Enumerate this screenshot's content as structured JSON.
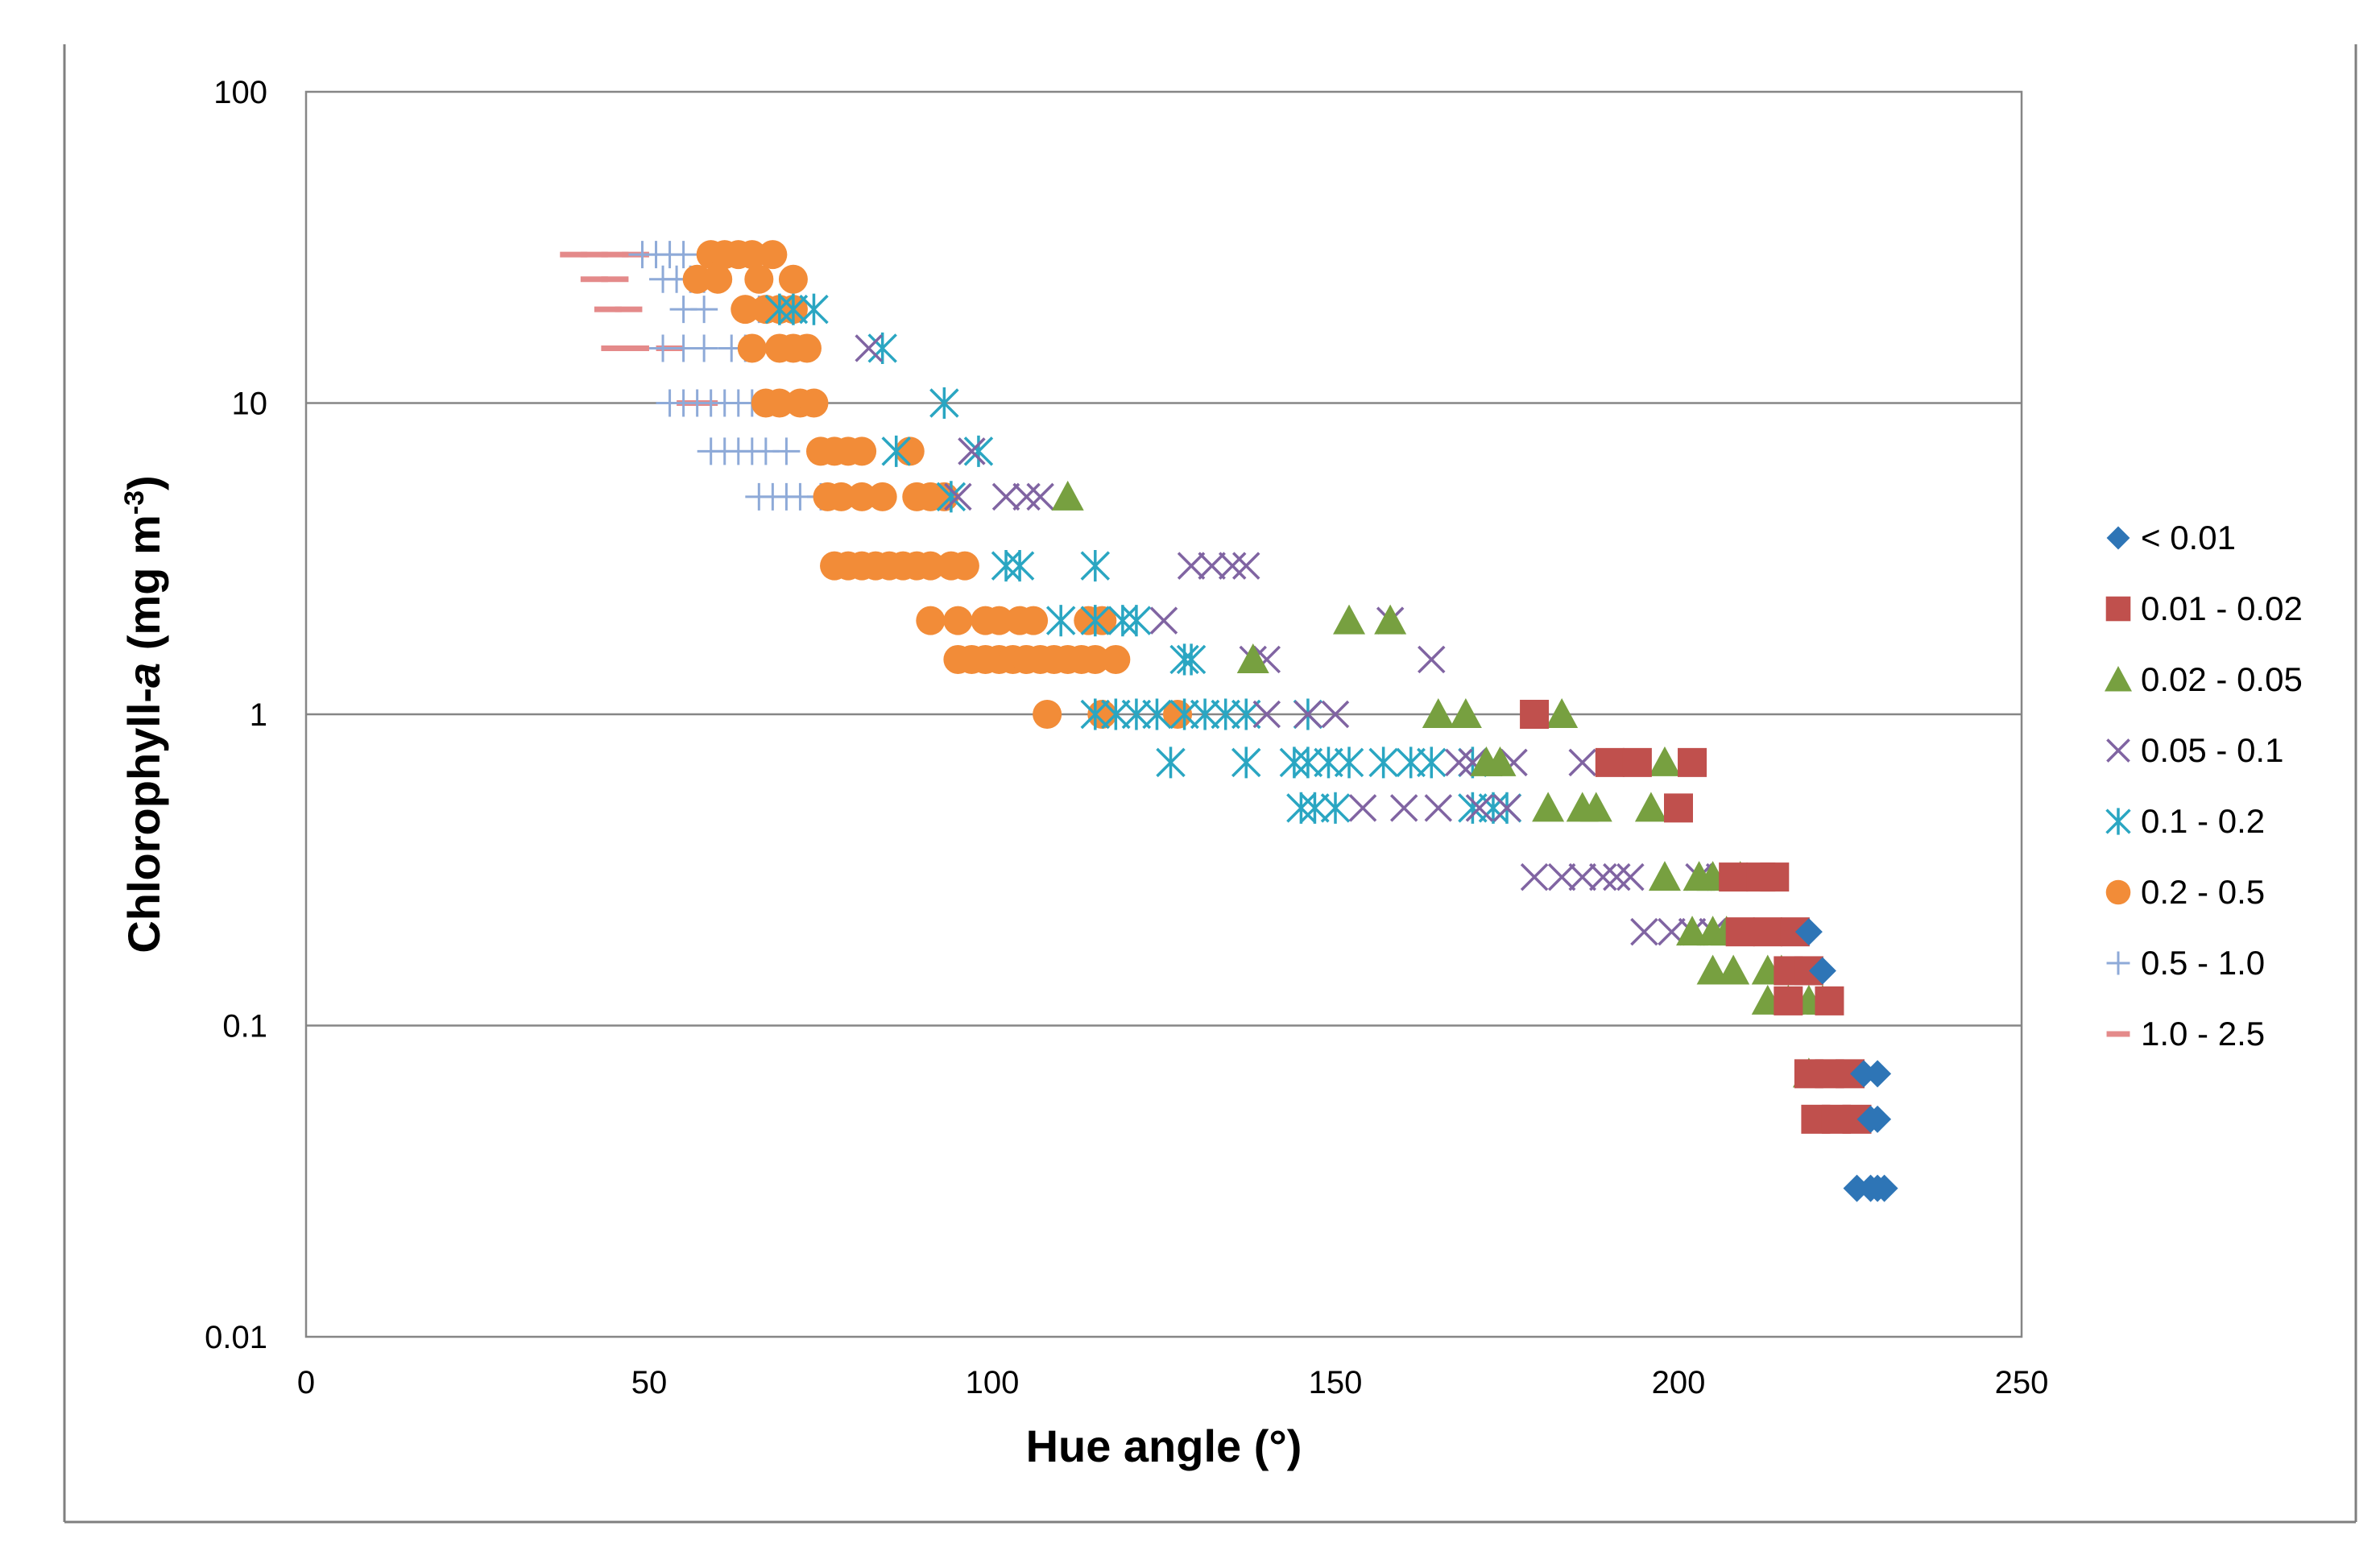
{
  "chart_data": {
    "type": "scatter",
    "title": "",
    "xlabel": "Hue angle (°)",
    "ylabel_main": "Chlorophyll-",
    "ylabel_italic": "a",
    "ylabel_unit": " (mg m",
    "ylabel_sup": "-3",
    "ylabel_close": ")",
    "xlim": [
      0,
      250
    ],
    "ylim": [
      0.01,
      100
    ],
    "yscale": "log",
    "xticks": [
      "0",
      "50",
      "100",
      "150",
      "200",
      "250"
    ],
    "xtick_values": [
      0,
      50,
      100,
      150,
      200,
      250
    ],
    "yticks": [
      "0.01",
      "0.1",
      "1",
      "10",
      "100"
    ],
    "ytick_values": [
      0.01,
      0.1,
      1,
      10,
      100
    ],
    "grid": "horizontal",
    "legend_position": "right",
    "series": [
      {
        "name": "< 0.01",
        "marker": "diamond",
        "color": "#2e75b6",
        "points": [
          [
            219,
            0.2
          ],
          [
            221,
            0.15
          ],
          [
            227,
            0.07
          ],
          [
            229,
            0.07
          ],
          [
            228,
            0.05
          ],
          [
            229,
            0.05
          ],
          [
            226,
            0.03
          ],
          [
            228,
            0.03
          ],
          [
            229,
            0.03
          ],
          [
            230,
            0.03
          ]
        ]
      },
      {
        "name": "0.01 - 0.02",
        "marker": "square",
        "color": "#c0504d",
        "points": [
          [
            179,
            1
          ],
          [
            190,
            0.7
          ],
          [
            194,
            0.7
          ],
          [
            202,
            0.7
          ],
          [
            200,
            0.5
          ],
          [
            208,
            0.3
          ],
          [
            212,
            0.3
          ],
          [
            214,
            0.3
          ],
          [
            209,
            0.2
          ],
          [
            213,
            0.2
          ],
          [
            217,
            0.2
          ],
          [
            216,
            0.15
          ],
          [
            219,
            0.15
          ],
          [
            222,
            0.12
          ],
          [
            216,
            0.12
          ],
          [
            219,
            0.07
          ],
          [
            222,
            0.07
          ],
          [
            225,
            0.07
          ],
          [
            220,
            0.05
          ],
          [
            223,
            0.05
          ],
          [
            226,
            0.05
          ]
        ]
      },
      {
        "name": "0.02 - 0.05",
        "marker": "triangle",
        "color": "#77a040",
        "points": [
          [
            111,
            5
          ],
          [
            138,
            1.5
          ],
          [
            152,
            2
          ],
          [
            158,
            2
          ],
          [
            165,
            1
          ],
          [
            169,
            1
          ],
          [
            183,
            1
          ],
          [
            172,
            0.7
          ],
          [
            174,
            0.7
          ],
          [
            198,
            0.7
          ],
          [
            181,
            0.5
          ],
          [
            186,
            0.5
          ],
          [
            188,
            0.5
          ],
          [
            196,
            0.5
          ],
          [
            198,
            0.3
          ],
          [
            203,
            0.3
          ],
          [
            205,
            0.3
          ],
          [
            209,
            0.3
          ],
          [
            202,
            0.2
          ],
          [
            205,
            0.2
          ],
          [
            207,
            0.2
          ],
          [
            205,
            0.15
          ],
          [
            208,
            0.15
          ],
          [
            213,
            0.15
          ],
          [
            215,
            0.15
          ],
          [
            213,
            0.12
          ],
          [
            216,
            0.12
          ],
          [
            219,
            0.12
          ],
          [
            221,
            0.12
          ],
          [
            219,
            0.07
          ]
        ]
      },
      {
        "name": "0.05 - 0.1",
        "marker": "x",
        "color": "#8064a2",
        "points": [
          [
            82,
            15
          ],
          [
            95,
            5
          ],
          [
            102,
            5
          ],
          [
            105,
            5
          ],
          [
            107,
            5
          ],
          [
            97,
            7
          ],
          [
            125,
            2
          ],
          [
            129,
            3
          ],
          [
            132,
            3
          ],
          [
            135,
            3
          ],
          [
            137,
            3
          ],
          [
            158,
            2
          ],
          [
            140,
            1.5
          ],
          [
            138,
            1.5
          ],
          [
            164,
            1.5
          ],
          [
            140,
            1
          ],
          [
            146,
            1
          ],
          [
            150,
            1
          ],
          [
            168,
            0.7
          ],
          [
            170,
            0.7
          ],
          [
            176,
            0.7
          ],
          [
            186,
            0.7
          ],
          [
            154,
            0.5
          ],
          [
            160,
            0.5
          ],
          [
            165,
            0.5
          ],
          [
            171,
            0.5
          ],
          [
            175,
            0.5
          ],
          [
            179,
            0.3
          ],
          [
            183,
            0.3
          ],
          [
            186,
            0.3
          ],
          [
            189,
            0.3
          ],
          [
            191,
            0.3
          ],
          [
            193,
            0.3
          ],
          [
            195,
            0.2
          ],
          [
            199,
            0.2
          ],
          [
            202,
            0.2
          ],
          [
            205,
            0.2
          ],
          [
            203,
            0.3
          ],
          [
            206,
            0.3
          ]
        ]
      },
      {
        "name": "0.1 - 0.2",
        "marker": "asterisk",
        "color": "#2aa6c2",
        "points": [
          [
            69,
            20
          ],
          [
            71,
            20
          ],
          [
            74,
            20
          ],
          [
            84,
            15
          ],
          [
            93,
            10
          ],
          [
            86,
            7
          ],
          [
            98,
            7
          ],
          [
            94,
            5
          ],
          [
            102,
            3
          ],
          [
            104,
            3
          ],
          [
            115,
            3
          ],
          [
            110,
            2
          ],
          [
            115,
            2
          ],
          [
            119,
            2
          ],
          [
            121,
            2
          ],
          [
            128,
            1.5
          ],
          [
            129,
            1.5
          ],
          [
            115,
            1
          ],
          [
            118,
            1
          ],
          [
            121,
            1
          ],
          [
            124,
            1
          ],
          [
            128,
            1
          ],
          [
            131,
            1
          ],
          [
            134,
            1
          ],
          [
            137,
            1
          ],
          [
            146,
            1
          ],
          [
            126,
            0.7
          ],
          [
            137,
            0.7
          ],
          [
            144,
            0.7
          ],
          [
            146,
            0.7
          ],
          [
            149,
            0.7
          ],
          [
            152,
            0.7
          ],
          [
            157,
            0.7
          ],
          [
            161,
            0.7
          ],
          [
            164,
            0.7
          ],
          [
            170,
            0.7
          ],
          [
            145,
            0.5
          ],
          [
            147,
            0.5
          ],
          [
            150,
            0.5
          ],
          [
            170,
            0.5
          ],
          [
            173,
            0.5
          ],
          [
            175,
            0.5
          ]
        ]
      },
      {
        "name": "0.2 - 0.5",
        "marker": "circle",
        "color": "#f28c38",
        "points": [
          [
            59,
            30
          ],
          [
            61,
            30
          ],
          [
            63,
            30
          ],
          [
            65,
            30
          ],
          [
            68,
            30
          ],
          [
            57,
            25
          ],
          [
            60,
            25
          ],
          [
            66,
            25
          ],
          [
            71,
            25
          ],
          [
            64,
            20
          ],
          [
            67,
            20
          ],
          [
            69,
            20
          ],
          [
            71,
            20
          ],
          [
            65,
            15
          ],
          [
            69,
            15
          ],
          [
            71,
            15
          ],
          [
            73,
            15
          ],
          [
            67,
            10
          ],
          [
            69,
            10
          ],
          [
            72,
            10
          ],
          [
            74,
            10
          ],
          [
            75,
            7
          ],
          [
            77,
            7
          ],
          [
            79,
            7
          ],
          [
            81,
            7
          ],
          [
            88,
            7
          ],
          [
            76,
            5
          ],
          [
            78,
            5
          ],
          [
            81,
            5
          ],
          [
            84,
            5
          ],
          [
            89,
            5
          ],
          [
            91,
            5
          ],
          [
            93,
            5
          ],
          [
            77,
            3
          ],
          [
            79,
            3
          ],
          [
            81,
            3
          ],
          [
            83,
            3
          ],
          [
            85,
            3
          ],
          [
            87,
            3
          ],
          [
            89,
            3
          ],
          [
            91,
            3
          ],
          [
            94,
            3
          ],
          [
            96,
            3
          ],
          [
            91,
            2
          ],
          [
            95,
            2
          ],
          [
            99,
            2
          ],
          [
            101,
            2
          ],
          [
            104,
            2
          ],
          [
            106,
            2
          ],
          [
            114,
            2
          ],
          [
            116,
            2
          ],
          [
            95,
            1.5
          ],
          [
            97,
            1.5
          ],
          [
            99,
            1.5
          ],
          [
            101,
            1.5
          ],
          [
            103,
            1.5
          ],
          [
            105,
            1.5
          ],
          [
            107,
            1.5
          ],
          [
            109,
            1.5
          ],
          [
            111,
            1.5
          ],
          [
            113,
            1.5
          ],
          [
            115,
            1.5
          ],
          [
            118,
            1.5
          ],
          [
            108,
            1
          ],
          [
            116,
            1
          ],
          [
            127,
            1
          ]
        ]
      },
      {
        "name": "0.5 - 1.0",
        "marker": "plus",
        "color": "#8eaad8",
        "points": [
          [
            49,
            30
          ],
          [
            51,
            30
          ],
          [
            53,
            30
          ],
          [
            55,
            30
          ],
          [
            52,
            25
          ],
          [
            54,
            25
          ],
          [
            56,
            25
          ],
          [
            58,
            25
          ],
          [
            60,
            25
          ],
          [
            55,
            20
          ],
          [
            58,
            20
          ],
          [
            66,
            20
          ],
          [
            52,
            15
          ],
          [
            55,
            15
          ],
          [
            58,
            15
          ],
          [
            62,
            15
          ],
          [
            64,
            15
          ],
          [
            53,
            10
          ],
          [
            55,
            10
          ],
          [
            57,
            10
          ],
          [
            59,
            10
          ],
          [
            61,
            10
          ],
          [
            63,
            10
          ],
          [
            65,
            10
          ],
          [
            67,
            10
          ],
          [
            69,
            10
          ],
          [
            59,
            7
          ],
          [
            61,
            7
          ],
          [
            63,
            7
          ],
          [
            65,
            7
          ],
          [
            67,
            7
          ],
          [
            70,
            7
          ],
          [
            66,
            5
          ],
          [
            68,
            5
          ],
          [
            70,
            5
          ],
          [
            72,
            5
          ],
          [
            75,
            5
          ]
        ]
      },
      {
        "name": "1.0 - 2.5",
        "marker": "dash",
        "color": "#e48a8a",
        "points": [
          [
            39,
            30
          ],
          [
            42,
            30
          ],
          [
            45,
            30
          ],
          [
            48,
            30
          ],
          [
            42,
            25
          ],
          [
            45,
            25
          ],
          [
            44,
            20
          ],
          [
            47,
            20
          ],
          [
            45,
            15
          ],
          [
            48,
            15
          ],
          [
            53,
            15
          ],
          [
            56,
            10
          ],
          [
            58,
            10
          ]
        ]
      }
    ]
  }
}
